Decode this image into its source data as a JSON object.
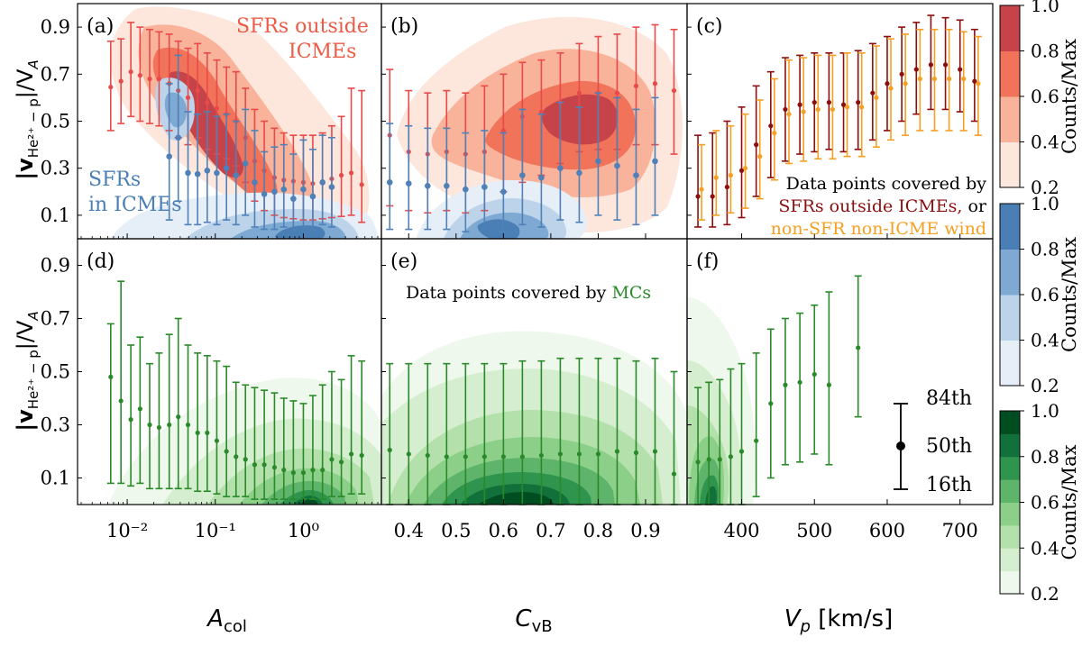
{
  "figure": {
    "ylabel": "|v",
    "ylabel_sub": "He²⁺ − p",
    "ylabel_tail": "|/V",
    "ylabel_va_sub": "A",
    "xlabels": {
      "acol": {
        "main": "A",
        "sub": "col"
      },
      "cvb": {
        "main": "C",
        "sub": "vB"
      },
      "vp": {
        "main": "V",
        "sub": "p",
        "tail": " [km/s]"
      }
    }
  },
  "annotations": {
    "sfr_outside_line1": "SFRs outside",
    "sfr_outside_line2": "ICMEs",
    "sfr_in_line1": "SFRs",
    "sfr_in_line2": "in ICMEs",
    "panel_c_line1": "Data points covered by",
    "panel_c_line2": "SFRs outside ICMEs,",
    "panel_c_line2_tail": " or",
    "panel_c_line3": "non-SFR non-ICME wind",
    "panel_e_prefix": "Data points covered by ",
    "panel_e_mc": "MCs",
    "pct_84": "84th",
    "pct_50": "50th",
    "pct_16": "16th"
  },
  "colorbars": [
    {
      "name": "red",
      "label": "Counts/Max",
      "ticks": [
        "1.0",
        "0.8",
        "0.6",
        "0.4",
        "0.2"
      ]
    },
    {
      "name": "blue",
      "label": "Counts/Max",
      "ticks": [
        "1.0",
        "0.8",
        "0.6",
        "0.4",
        "0.2"
      ]
    },
    {
      "name": "green",
      "label": "Counts/Max",
      "ticks": [
        "1.0",
        "0.8",
        "0.6",
        "0.4",
        "0.2"
      ]
    }
  ],
  "colors": {
    "red_levels": [
      "#fde6dc",
      "#f9b39a",
      "#f1735a",
      "#c6434a"
    ],
    "blue_levels": [
      "#e6eef8",
      "#bcd3ea",
      "#7ea9d3",
      "#4a7fb6"
    ],
    "green_levels": [
      "#eef8ec",
      "#d5eecf",
      "#b4e0ac",
      "#8ccf89",
      "#5db46a",
      "#2f944e",
      "#12703a",
      "#004d22"
    ],
    "red_points": "#e84a4a",
    "dark_red_points": "#8b0f0f",
    "blue_points": "#4f81b8",
    "orange_points": "#f5a023",
    "green_points": "#2a8a2a"
  },
  "chart_data": [
    {
      "panel": "(a)",
      "type": "scatter",
      "xscale": "log",
      "xlabel": "A_col",
      "ylabel": "|v_He2+ - p|/V_A",
      "xlim": [
        0.003,
        7
      ],
      "ylim": [
        0.0,
        1.0
      ],
      "xticks": [
        "10⁻²",
        "10⁻¹",
        "10⁰"
      ],
      "yticks": [
        "0.1",
        "0.3",
        "0.5",
        "0.7",
        "0.9"
      ],
      "series": [
        {
          "name": "SFRs outside ICMEs",
          "x": [
            0.0065,
            0.0085,
            0.011,
            0.014,
            0.018,
            0.023,
            0.03,
            0.038,
            0.049,
            0.063,
            0.081,
            0.104,
            0.134,
            0.172,
            0.22,
            0.28,
            0.36,
            0.47,
            0.6,
            0.77,
            1.0,
            1.28,
            1.65,
            2.1,
            2.7,
            3.5,
            4.6
          ],
          "median": [
            0.645,
            0.67,
            0.71,
            0.695,
            0.68,
            0.68,
            0.66,
            0.63,
            0.6,
            0.63,
            0.58,
            0.555,
            0.53,
            0.5,
            0.43,
            0.33,
            0.29,
            0.26,
            0.25,
            0.245,
            0.24,
            0.235,
            0.24,
            0.255,
            0.27,
            0.28,
            0.23
          ],
          "p16": [
            0.46,
            0.49,
            0.52,
            0.5,
            0.49,
            0.48,
            0.46,
            0.43,
            0.4,
            0.43,
            0.38,
            0.36,
            0.34,
            0.31,
            0.24,
            0.16,
            0.12,
            0.1,
            0.09,
            0.085,
            0.08,
            0.08,
            0.085,
            0.09,
            0.095,
            0.1,
            0.07
          ],
          "p84": [
            0.84,
            0.85,
            0.92,
            0.9,
            0.89,
            0.88,
            0.87,
            0.84,
            0.81,
            0.83,
            0.79,
            0.76,
            0.73,
            0.71,
            0.64,
            0.55,
            0.5,
            0.47,
            0.45,
            0.44,
            0.44,
            0.44,
            0.45,
            0.48,
            0.52,
            0.64,
            0.63
          ]
        },
        {
          "name": "SFRs in ICMEs",
          "x": [
            0.03,
            0.038,
            0.049,
            0.063,
            0.081,
            0.104,
            0.134,
            0.172,
            0.22,
            0.28,
            0.36,
            0.47,
            0.6,
            0.77,
            1.0,
            1.28,
            1.65,
            2.1
          ],
          "median": [
            0.35,
            0.43,
            0.28,
            0.275,
            0.29,
            0.28,
            0.3,
            0.27,
            0.32,
            0.24,
            0.19,
            0.2,
            0.21,
            0.17,
            0.21,
            0.18,
            0.24,
            0.22
          ],
          "p16": [
            0.08,
            0.16,
            0.06,
            0.06,
            0.07,
            0.06,
            0.08,
            0.06,
            0.1,
            0.05,
            0.04,
            0.04,
            0.05,
            0.04,
            0.05,
            0.04,
            0.06,
            0.05
          ],
          "p84": [
            0.66,
            0.78,
            0.54,
            0.53,
            0.54,
            0.52,
            0.53,
            0.5,
            0.55,
            0.46,
            0.37,
            0.39,
            0.4,
            0.36,
            0.42,
            0.38,
            0.44,
            0.43
          ]
        }
      ]
    },
    {
      "panel": "(b)",
      "type": "scatter",
      "xlabel": "C_vB",
      "xlim": [
        0.35,
        0.98
      ],
      "ylim": [
        0.0,
        1.0
      ],
      "xticks": [
        "0.4",
        "0.5",
        "0.6",
        "0.7",
        "0.8",
        "0.9"
      ],
      "series": [
        {
          "name": "SFRs outside ICMEs",
          "x": [
            0.36,
            0.4,
            0.44,
            0.48,
            0.52,
            0.56,
            0.6,
            0.64,
            0.68,
            0.72,
            0.76,
            0.8,
            0.84,
            0.88,
            0.92,
            0.96
          ],
          "median": [
            0.44,
            0.37,
            0.36,
            0.37,
            0.36,
            0.37,
            0.46,
            0.52,
            0.54,
            0.58,
            0.62,
            0.62,
            0.62,
            0.65,
            0.66,
            0.63
          ],
          "p16": [
            0.14,
            0.12,
            0.11,
            0.12,
            0.11,
            0.12,
            0.2,
            0.24,
            0.27,
            0.32,
            0.37,
            0.38,
            0.38,
            0.4,
            0.4,
            0.36
          ],
          "p84": [
            0.72,
            0.63,
            0.62,
            0.63,
            0.62,
            0.65,
            0.7,
            0.75,
            0.76,
            0.79,
            0.83,
            0.86,
            0.87,
            0.9,
            0.91,
            0.89
          ]
        },
        {
          "name": "SFRs in ICMEs",
          "x": [
            0.36,
            0.4,
            0.44,
            0.48,
            0.52,
            0.56,
            0.6,
            0.64,
            0.68,
            0.72,
            0.76,
            0.8,
            0.84,
            0.88,
            0.92
          ],
          "median": [
            0.24,
            0.235,
            0.225,
            0.225,
            0.21,
            0.22,
            0.2,
            0.27,
            0.26,
            0.3,
            0.28,
            0.33,
            0.31,
            0.27,
            0.33
          ],
          "p16": [
            0.04,
            0.04,
            0.04,
            0.04,
            0.03,
            0.04,
            0.03,
            0.06,
            0.05,
            0.08,
            0.07,
            0.1,
            0.08,
            0.06,
            0.1
          ],
          "p84": [
            0.49,
            0.48,
            0.47,
            0.47,
            0.45,
            0.46,
            0.45,
            0.55,
            0.53,
            0.58,
            0.56,
            0.62,
            0.6,
            0.55,
            0.6
          ]
        }
      ]
    },
    {
      "panel": "(c)",
      "type": "scatter",
      "xlabel": "V_p [km/s]",
      "xlim": [
        330,
        740
      ],
      "ylim": [
        0.0,
        1.0
      ],
      "xticks": [
        "400",
        "500",
        "600",
        "700"
      ],
      "series": [
        {
          "name": "SFRs outside ICMEs",
          "x": [
            340,
            360,
            380,
            400,
            420,
            440,
            460,
            480,
            500,
            520,
            540,
            560,
            580,
            600,
            620,
            640,
            660,
            680,
            700,
            720
          ],
          "median": [
            0.18,
            0.18,
            0.22,
            0.29,
            0.4,
            0.48,
            0.55,
            0.57,
            0.58,
            0.58,
            0.57,
            0.58,
            0.62,
            0.66,
            0.7,
            0.72,
            0.74,
            0.74,
            0.72,
            0.67
          ],
          "p16": [
            0.05,
            0.05,
            0.06,
            0.09,
            0.18,
            0.26,
            0.33,
            0.36,
            0.37,
            0.38,
            0.37,
            0.38,
            0.42,
            0.46,
            0.5,
            0.53,
            0.55,
            0.55,
            0.54,
            0.5
          ],
          "p84": [
            0.44,
            0.45,
            0.5,
            0.56,
            0.65,
            0.71,
            0.77,
            0.78,
            0.79,
            0.79,
            0.79,
            0.8,
            0.83,
            0.86,
            0.9,
            0.92,
            0.95,
            0.94,
            0.93,
            0.89
          ]
        },
        {
          "name": "non-SFR non-ICME wind",
          "x": [
            345,
            365,
            385,
            405,
            425,
            445,
            465,
            485,
            505,
            525,
            545,
            565,
            585,
            605,
            625,
            645,
            665,
            685,
            705,
            725
          ],
          "median": [
            0.21,
            0.26,
            0.27,
            0.3,
            0.35,
            0.45,
            0.53,
            0.54,
            0.55,
            0.55,
            0.56,
            0.56,
            0.6,
            0.64,
            0.66,
            0.68,
            0.68,
            0.68,
            0.68,
            0.66
          ],
          "p16": [
            0.08,
            0.1,
            0.11,
            0.13,
            0.17,
            0.25,
            0.32,
            0.33,
            0.34,
            0.34,
            0.35,
            0.35,
            0.39,
            0.42,
            0.44,
            0.46,
            0.46,
            0.46,
            0.46,
            0.44
          ],
          "p84": [
            0.4,
            0.46,
            0.48,
            0.53,
            0.59,
            0.68,
            0.76,
            0.77,
            0.78,
            0.78,
            0.79,
            0.79,
            0.82,
            0.85,
            0.87,
            0.89,
            0.89,
            0.89,
            0.88,
            0.86
          ]
        }
      ]
    },
    {
      "panel": "(d)",
      "type": "scatter",
      "xscale": "log",
      "xlabel": "A_col",
      "xlim": [
        0.003,
        7
      ],
      "ylim": [
        0.0,
        1.0
      ],
      "xticks": [
        "10⁻²",
        "10⁻¹",
        "10⁰"
      ],
      "yticks": [
        "0.1",
        "0.3",
        "0.5",
        "0.7",
        "0.9"
      ],
      "series": [
        {
          "name": "MCs",
          "x": [
            0.0065,
            0.0085,
            0.011,
            0.014,
            0.018,
            0.023,
            0.03,
            0.038,
            0.049,
            0.063,
            0.081,
            0.104,
            0.134,
            0.172,
            0.22,
            0.28,
            0.36,
            0.47,
            0.6,
            0.77,
            1.0,
            1.28,
            1.65,
            2.1,
            2.7,
            3.5,
            4.6
          ],
          "median": [
            0.48,
            0.39,
            0.32,
            0.36,
            0.3,
            0.29,
            0.3,
            0.33,
            0.3,
            0.27,
            0.27,
            0.24,
            0.2,
            0.18,
            0.17,
            0.15,
            0.15,
            0.14,
            0.13,
            0.12,
            0.12,
            0.13,
            0.13,
            0.17,
            0.16,
            0.19,
            0.185
          ],
          "p16": [
            0.08,
            0.08,
            0.07,
            0.08,
            0.06,
            0.06,
            0.06,
            0.06,
            0.06,
            0.05,
            0.05,
            0.04,
            0.03,
            0.03,
            0.03,
            0.02,
            0.02,
            0.02,
            0.02,
            0.02,
            0.02,
            0.02,
            0.02,
            0.03,
            0.03,
            0.04,
            0.04
          ],
          "p84": [
            0.68,
            0.84,
            0.6,
            0.63,
            0.53,
            0.57,
            0.64,
            0.7,
            0.6,
            0.57,
            0.56,
            0.54,
            0.52,
            0.46,
            0.45,
            0.44,
            0.43,
            0.42,
            0.4,
            0.39,
            0.38,
            0.41,
            0.45,
            0.5,
            0.47,
            0.56,
            0.54
          ]
        }
      ]
    },
    {
      "panel": "(e)",
      "type": "scatter",
      "xlabel": "C_vB",
      "xlim": [
        0.35,
        0.98
      ],
      "ylim": [
        0.0,
        1.0
      ],
      "xticks": [
        "0.4",
        "0.5",
        "0.6",
        "0.7",
        "0.8",
        "0.9"
      ],
      "series": [
        {
          "name": "MCs",
          "x": [
            0.36,
            0.4,
            0.44,
            0.48,
            0.52,
            0.56,
            0.6,
            0.64,
            0.68,
            0.72,
            0.76,
            0.8,
            0.84,
            0.88,
            0.92,
            0.96
          ],
          "median": [
            0.205,
            0.19,
            0.185,
            0.18,
            0.18,
            0.18,
            0.18,
            0.18,
            0.185,
            0.19,
            0.19,
            0.19,
            0.2,
            0.195,
            0.2,
            0.115
          ],
          "p16": [
            0.0,
            0.0,
            0.0,
            0.0,
            0.0,
            0.0,
            0.0,
            0.0,
            0.0,
            0.0,
            0.0,
            0.0,
            0.0,
            0.0,
            0.0,
            0.0
          ],
          "p84": [
            0.53,
            0.53,
            0.53,
            0.53,
            0.53,
            0.53,
            0.53,
            0.54,
            0.54,
            0.55,
            0.55,
            0.55,
            0.55,
            0.54,
            0.55,
            0.5
          ]
        }
      ]
    },
    {
      "panel": "(f)",
      "type": "scatter",
      "xlabel": "V_p [km/s]",
      "xlim": [
        330,
        740
      ],
      "ylim": [
        0.0,
        1.0
      ],
      "xticks": [
        "400",
        "500",
        "600",
        "700"
      ],
      "series": [
        {
          "name": "MCs",
          "x": [
            340,
            355,
            370,
            385,
            400,
            420,
            440,
            460,
            480,
            500,
            520,
            560
          ],
          "median": [
            0.16,
            0.17,
            0.17,
            0.18,
            0.2,
            0.24,
            0.38,
            0.45,
            0.46,
            0.49,
            0.45,
            0.59
          ],
          "p16": [
            0.0,
            0.0,
            0.0,
            0.0,
            0.0,
            0.03,
            0.1,
            0.15,
            0.16,
            0.19,
            0.15,
            0.33
          ],
          "p84": [
            0.44,
            0.46,
            0.47,
            0.51,
            0.53,
            0.57,
            0.66,
            0.7,
            0.72,
            0.75,
            0.8,
            0.86
          ]
        }
      ]
    }
  ]
}
